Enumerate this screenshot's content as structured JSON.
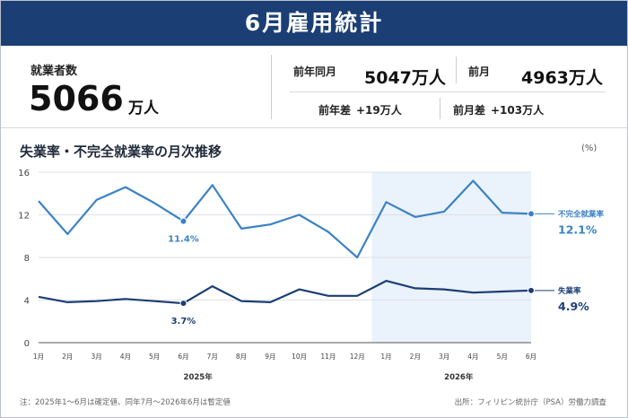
{
  "header": {
    "title": "6月雇用統計"
  },
  "stats": {
    "employed_label": "就業者数",
    "employed_value": "5066",
    "employed_unit": "万人",
    "prev_year_label": "前年同月",
    "prev_year_value": "5047万人",
    "prev_month_label": "前月",
    "prev_month_value": "4963万人",
    "yoy_label": "前年差",
    "yoy_value": "+19万人",
    "mom_label": "前月差",
    "mom_value": "+103万人"
  },
  "chart_data": {
    "type": "line",
    "title": "失業率・不完全就業率の月次推移",
    "ylabel": "(%)",
    "ylim": [
      0,
      16
    ],
    "yticks": [
      0,
      4,
      8,
      12,
      16
    ],
    "grid": true,
    "categories": [
      "1月",
      "2月",
      "3月",
      "4月",
      "5月",
      "6月",
      "7月",
      "8月",
      "9月",
      "10月",
      "11月",
      "12月",
      "1月",
      "2月",
      "3月",
      "4月",
      "5月",
      "6月"
    ],
    "year_labels": [
      "2025年",
      "2026年"
    ],
    "shaded_range": [
      "1月 2026",
      "6月 2026"
    ],
    "series": [
      {
        "name": "不完全就業率",
        "color": "#3b82c4",
        "values": [
          13.3,
          10.2,
          13.4,
          14.6,
          13.1,
          11.4,
          14.8,
          10.7,
          11.1,
          12.0,
          10.4,
          8.0,
          13.2,
          11.8,
          12.3,
          15.2,
          12.2,
          12.1
        ],
        "annotations": [
          {
            "index": 5,
            "label": "11.4%"
          }
        ],
        "end_label": "12.1%"
      },
      {
        "name": "失業率",
        "color": "#1b3e74",
        "values": [
          4.3,
          3.8,
          3.9,
          4.1,
          3.9,
          3.7,
          5.3,
          3.9,
          3.8,
          5.0,
          4.4,
          4.4,
          5.8,
          5.1,
          5.0,
          4.7,
          4.8,
          4.9
        ],
        "annotations": [
          {
            "index": 5,
            "label": "3.7%"
          }
        ],
        "end_label": "4.9%"
      }
    ]
  },
  "footer": {
    "note": "注：2025年1～6月は確定値、同年7月～2026年6月は暫定値",
    "source": "出所：フィリピン統計庁（PSA）労働力調査"
  }
}
